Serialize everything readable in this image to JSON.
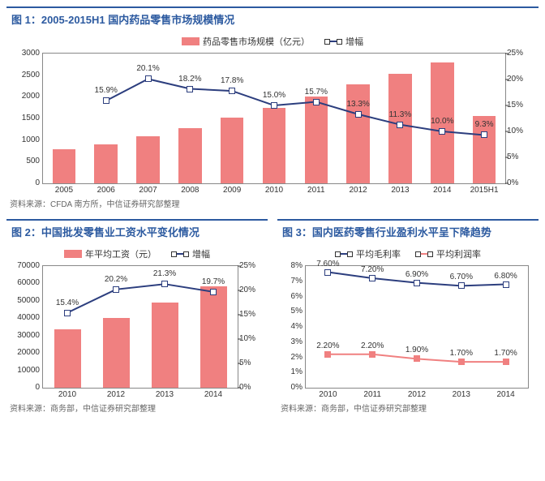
{
  "colors": {
    "bar": "#f08080",
    "line": "#2c3e7e",
    "line2": "#f08080",
    "titleBg": "#2c5aa0",
    "grid": "#cccccc"
  },
  "chart1": {
    "title": "图 1：2005-2015H1 国内药品零售市场规模情况",
    "legend": {
      "bar": "药品零售市场规模（亿元）",
      "line": "增幅"
    },
    "categories": [
      "2005",
      "2006",
      "2007",
      "2008",
      "2009",
      "2010",
      "2011",
      "2012",
      "2013",
      "2014",
      "2015H1"
    ],
    "bars": [
      780,
      900,
      1080,
      1280,
      1510,
      1740,
      2010,
      2280,
      2540,
      2800,
      1550
    ],
    "yL": {
      "min": 0,
      "max": 3000,
      "step": 500
    },
    "line": [
      null,
      15.9,
      20.1,
      18.2,
      17.8,
      15.0,
      15.7,
      13.3,
      11.3,
      10.0,
      9.3
    ],
    "lineLabels": [
      null,
      "15.9%",
      "20.1%",
      "18.2%",
      "17.8%",
      "15.0%",
      "15.7%",
      "13.3%",
      "11.3%",
      "10.0%",
      "9.3%"
    ],
    "yR": {
      "min": 0,
      "max": 25,
      "step": 5
    },
    "source": "资料来源：CFDA 南方所，中信证券研究部整理"
  },
  "chart2": {
    "title": "图 2：中国批发零售业工资水平变化情况",
    "legend": {
      "bar": "年平均工资（元）",
      "line": "增幅"
    },
    "categories": [
      "2010",
      "2012",
      "2013",
      "2014"
    ],
    "bars": [
      33500,
      40300,
      48900,
      58500
    ],
    "yL": {
      "min": 0,
      "max": 70000,
      "step": 10000
    },
    "line": [
      15.4,
      20.2,
      21.3,
      19.7
    ],
    "lineLabels": [
      "15.4%",
      "20.2%",
      "21.3%",
      "19.7%"
    ],
    "yR": {
      "min": 0,
      "max": 25,
      "step": 5
    },
    "source": "资料来源：商务部，中信证券研究部整理"
  },
  "chart3": {
    "title": "图 3：国内医药零售行业盈利水平呈下降趋势",
    "legend": {
      "a": "平均毛利率",
      "b": "平均利润率"
    },
    "categories": [
      "2010",
      "2011",
      "2012",
      "2013",
      "2014"
    ],
    "series": [
      {
        "name": "a",
        "vals": [
          7.6,
          7.2,
          6.9,
          6.7,
          6.8
        ],
        "labels": [
          "7.60%",
          "7.20%",
          "6.90%",
          "6.70%",
          "6.80%"
        ],
        "color": "#2c3e7e"
      },
      {
        "name": "b",
        "vals": [
          2.2,
          2.2,
          1.9,
          1.7,
          1.7
        ],
        "labels": [
          "2.20%",
          "2.20%",
          "1.90%",
          "1.70%",
          "1.70%"
        ],
        "color": "#f08080"
      }
    ],
    "y": {
      "min": 0,
      "max": 8,
      "step": 1
    },
    "source": "资料来源：商务部，中信证券研究部整理"
  }
}
